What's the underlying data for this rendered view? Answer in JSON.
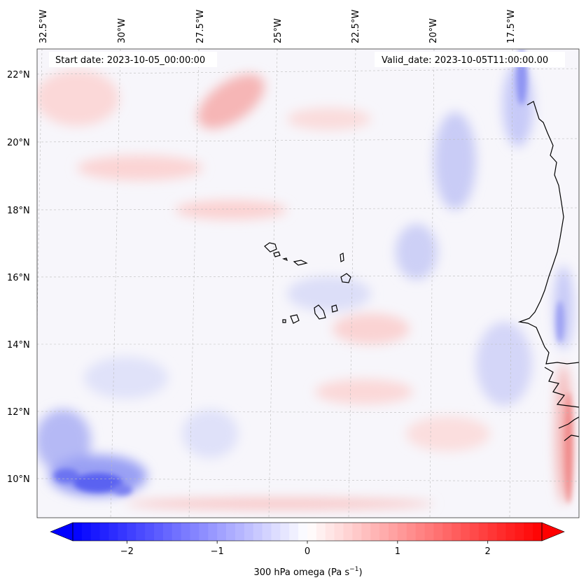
{
  "map": {
    "header": {
      "start_date": "Start date: 2023-10-05_00:00:00",
      "valid_date": "Valid_date: 2023-10-05T11:00:00.00"
    },
    "lon_labels": [
      "32.5°W",
      "30°W",
      "27.5°W",
      "25°W",
      "22.5°W",
      "20°W",
      "17.5°W"
    ],
    "lat_labels": [
      "22°N",
      "20°N",
      "18°N",
      "16°N",
      "14°N",
      "12°N",
      "10°N"
    ],
    "colorbar": {
      "ticks": [
        "−2",
        "−1",
        "0",
        "1",
        "2"
      ],
      "label": "300 hPa omega (Pa s",
      "label_sup": "−1",
      "label_end": ")",
      "min": -2.6,
      "max": 2.6,
      "cmap": "bwr",
      "extend": "both"
    },
    "colors": {
      "negative": "#0000ff",
      "zero": "#ffffff",
      "positive": "#ff0000",
      "coastline": "#000000",
      "gridline": "#bbbbbb"
    }
  }
}
